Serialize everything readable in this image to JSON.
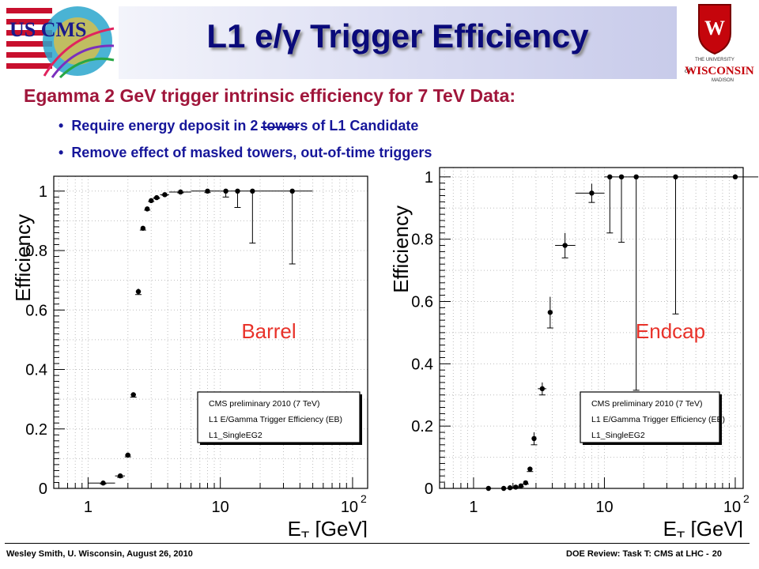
{
  "title": "L1 e/γ Trigger Efficiency",
  "logos": {
    "left": "US CMS",
    "right_top": "THE UNIVERSITY",
    "right_of": "of",
    "right_name": "WISCONSIN",
    "right_sub": "MADISON"
  },
  "headline": "Egamma 2 GeV trigger intrinsic efficiency for 7 TeV Data:",
  "bullets": [
    "Require energy deposit in 2 towers of L1 Candidate",
    "Remove effect of masked towers, out-of-time triggers"
  ],
  "colors": {
    "title": "#0a0a7a",
    "headline": "#a0163b",
    "bullets": "#16169a",
    "region_label": "#e8322a"
  },
  "chart_data": [
    {
      "type": "scatter",
      "region_label": "Barrel",
      "xlabel": "E_T [GeV]",
      "ylabel": "Efficiency",
      "xscale": "log",
      "xlim": [
        0.55,
        130
      ],
      "ylim": [
        0,
        1.05
      ],
      "x_tick_labels": [
        "1",
        "10",
        "10^2"
      ],
      "y_ticks": [
        0,
        0.2,
        0.4,
        0.6,
        0.8,
        1
      ],
      "y_tick_labels": [
        "0",
        "0.2",
        "0.4",
        "0.6",
        "0.8",
        "1"
      ],
      "legend_lines": [
        "CMS preliminary 2010 (7 TeV)",
        "L1 E/Gamma Trigger Efficiency (EB)",
        "L1_SingleEG2"
      ],
      "legend_position": "bottom-right",
      "grid": true,
      "points": [
        {
          "x": 1.3,
          "xlo": 1.0,
          "xhi": 1.6,
          "y": 0.018,
          "elo": 0.003,
          "ehi": 0.003
        },
        {
          "x": 1.75,
          "xlo": 1.6,
          "xhi": 1.9,
          "y": 0.042,
          "elo": 0.005,
          "ehi": 0.005
        },
        {
          "x": 2.0,
          "xlo": 1.9,
          "xhi": 2.1,
          "y": 0.112,
          "elo": 0.006,
          "ehi": 0.006
        },
        {
          "x": 2.2,
          "xlo": 2.1,
          "xhi": 2.3,
          "y": 0.315,
          "elo": 0.008,
          "ehi": 0.008
        },
        {
          "x": 2.4,
          "xlo": 2.3,
          "xhi": 2.5,
          "y": 0.662,
          "elo": 0.01,
          "ehi": 0.01
        },
        {
          "x": 2.6,
          "xlo": 2.5,
          "xhi": 2.7,
          "y": 0.875,
          "elo": 0.006,
          "ehi": 0.006
        },
        {
          "x": 2.8,
          "xlo": 2.7,
          "xhi": 2.9,
          "y": 0.94,
          "elo": 0.004,
          "ehi": 0.004
        },
        {
          "x": 3.0,
          "xlo": 2.9,
          "xhi": 3.1,
          "y": 0.968,
          "elo": 0.003,
          "ehi": 0.003
        },
        {
          "x": 3.3,
          "xlo": 3.1,
          "xhi": 3.5,
          "y": 0.978,
          "elo": 0.003,
          "ehi": 0.003
        },
        {
          "x": 3.8,
          "xlo": 3.5,
          "xhi": 4.1,
          "y": 0.988,
          "elo": 0.002,
          "ehi": 0.002
        },
        {
          "x": 5.0,
          "xlo": 4.1,
          "xhi": 6.0,
          "y": 0.997,
          "elo": 0.003,
          "ehi": 0.002
        },
        {
          "x": 8.0,
          "xlo": 6.0,
          "xhi": 10.0,
          "y": 1.0,
          "elo": 0.005,
          "ehi": 0.0
        },
        {
          "x": 11.0,
          "xlo": 10.0,
          "xhi": 12.0,
          "y": 1.0,
          "elo": 0.02,
          "ehi": 0.0
        },
        {
          "x": 13.5,
          "xlo": 12.0,
          "xhi": 15.0,
          "y": 1.0,
          "elo": 0.055,
          "ehi": 0.0
        },
        {
          "x": 17.5,
          "xlo": 15.0,
          "xhi": 20.0,
          "y": 1.0,
          "elo": 0.175,
          "ehi": 0.0
        },
        {
          "x": 35.0,
          "xlo": 20.0,
          "xhi": 50.0,
          "y": 1.0,
          "elo": 0.245,
          "ehi": 0.0
        }
      ]
    },
    {
      "type": "scatter",
      "region_label": "Endcap",
      "xlabel": "E_T [GeV]",
      "ylabel": "Efficiency",
      "xscale": "log",
      "xlim": [
        0.55,
        115
      ],
      "ylim": [
        0,
        1.03
      ],
      "x_tick_labels": [
        "1",
        "10",
        "10^2"
      ],
      "y_ticks": [
        0,
        0.2,
        0.4,
        0.6,
        0.8,
        1
      ],
      "y_tick_labels": [
        "0",
        "0.2",
        "0.4",
        "0.6",
        "0.8",
        "1"
      ],
      "legend_lines": [
        "CMS preliminary 2010 (7 TeV)",
        "L1 E/Gamma Trigger Efficiency (EE)",
        "L1_SingleEG2"
      ],
      "legend_position": "bottom-right",
      "grid": true,
      "points": [
        {
          "x": 1.3,
          "xlo": 1.25,
          "xhi": 1.35,
          "y": 0.0,
          "elo": 0.0,
          "ehi": 0.0
        },
        {
          "x": 1.7,
          "xlo": 1.65,
          "xhi": 1.75,
          "y": 0.0,
          "elo": 0.0,
          "ehi": 0.0
        },
        {
          "x": 1.9,
          "xlo": 1.85,
          "xhi": 1.95,
          "y": 0.002,
          "elo": 0.002,
          "ehi": 0.002
        },
        {
          "x": 2.1,
          "xlo": 2.05,
          "xhi": 2.15,
          "y": 0.004,
          "elo": 0.002,
          "ehi": 0.002
        },
        {
          "x": 2.3,
          "xlo": 2.25,
          "xhi": 2.35,
          "y": 0.008,
          "elo": 0.003,
          "ehi": 0.003
        },
        {
          "x": 2.5,
          "xlo": 2.45,
          "xhi": 2.55,
          "y": 0.018,
          "elo": 0.004,
          "ehi": 0.004
        },
        {
          "x": 2.7,
          "xlo": 2.65,
          "xhi": 2.75,
          "y": 0.062,
          "elo": 0.008,
          "ehi": 0.008
        },
        {
          "x": 2.9,
          "xlo": 2.85,
          "xhi": 2.95,
          "y": 0.16,
          "elo": 0.02,
          "ehi": 0.02
        },
        {
          "x": 3.35,
          "xlo": 3.1,
          "xhi": 3.6,
          "y": 0.32,
          "elo": 0.02,
          "ehi": 0.02
        },
        {
          "x": 3.85,
          "xlo": 3.7,
          "xhi": 4.0,
          "y": 0.565,
          "elo": 0.05,
          "ehi": 0.05
        },
        {
          "x": 5.0,
          "xlo": 4.2,
          "xhi": 6.0,
          "y": 0.78,
          "elo": 0.04,
          "ehi": 0.04
        },
        {
          "x": 8.0,
          "xlo": 6.0,
          "xhi": 10.0,
          "y": 0.948,
          "elo": 0.03,
          "ehi": 0.03
        },
        {
          "x": 11.0,
          "xlo": 10.0,
          "xhi": 12.0,
          "y": 1.0,
          "elo": 0.18,
          "ehi": 0.0
        },
        {
          "x": 13.5,
          "xlo": 12.0,
          "xhi": 15.0,
          "y": 1.0,
          "elo": 0.21,
          "ehi": 0.0
        },
        {
          "x": 17.5,
          "xlo": 15.0,
          "xhi": 20.0,
          "y": 1.0,
          "elo": 0.685,
          "ehi": 0.0
        },
        {
          "x": 35.0,
          "xlo": 20.0,
          "xhi": 50.0,
          "y": 1.0,
          "elo": 0.44,
          "ehi": 0.0
        },
        {
          "x": 100.0,
          "xlo": 50.0,
          "xhi": 150.0,
          "y": 1.0,
          "elo": 0.0,
          "ehi": 0.0
        }
      ]
    }
  ],
  "footer": {
    "left": "Wesley Smith, U. Wisconsin, August 26, 2010",
    "right": "DOE Review: Task T: CMS at LHC -",
    "page": "20"
  }
}
